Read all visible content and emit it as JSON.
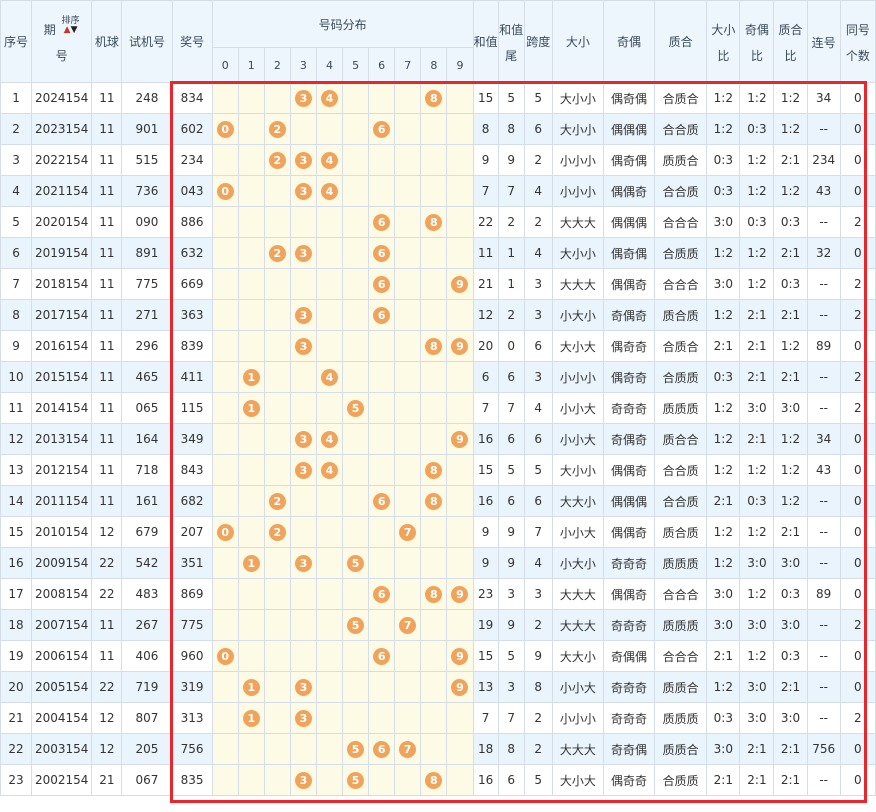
{
  "headers": {
    "seq": "序号",
    "period_top": "期",
    "period_bottom": "号",
    "sort": "排序",
    "machine": "机球",
    "trial": "试机号",
    "prize": "奖号",
    "distribution": "号码分布",
    "digits": [
      "0",
      "1",
      "2",
      "3",
      "4",
      "5",
      "6",
      "7",
      "8",
      "9"
    ],
    "sum": "和值",
    "sum_tail": "和值尾",
    "span": "跨度",
    "size": "大小",
    "parity": "奇偶",
    "prime": "质合",
    "size_ratio": "大小比",
    "parity_ratio": "奇偶比",
    "prime_ratio": "质合比",
    "consecutive": "连号",
    "same_count": "同号个数"
  },
  "rows": [
    {
      "seq": "1",
      "period": "2024154",
      "machine": "11",
      "trial": "248",
      "prize": "834",
      "balls": [
        "3",
        "4",
        "8"
      ],
      "sum": "15",
      "tail": "5",
      "span": "5",
      "size": "大小小",
      "parity": "偶奇偶",
      "prime": "合质合",
      "sr": "1:2",
      "pr": "1:2",
      "qr": "1:2",
      "cons": "34",
      "same": "0"
    },
    {
      "seq": "2",
      "period": "2023154",
      "machine": "11",
      "trial": "901",
      "prize": "602",
      "balls": [
        "0",
        "2",
        "6"
      ],
      "sum": "8",
      "tail": "8",
      "span": "6",
      "size": "大小小",
      "parity": "偶偶偶",
      "prime": "合合质",
      "sr": "1:2",
      "pr": "0:3",
      "qr": "1:2",
      "cons": "--",
      "same": "0"
    },
    {
      "seq": "3",
      "period": "2022154",
      "machine": "11",
      "trial": "515",
      "prize": "234",
      "balls": [
        "2",
        "3",
        "4"
      ],
      "sum": "9",
      "tail": "9",
      "span": "2",
      "size": "小小小",
      "parity": "偶奇偶",
      "prime": "质质合",
      "sr": "0:3",
      "pr": "1:2",
      "qr": "2:1",
      "cons": "234",
      "same": "0"
    },
    {
      "seq": "4",
      "period": "2021154",
      "machine": "11",
      "trial": "736",
      "prize": "043",
      "balls": [
        "0",
        "3",
        "4"
      ],
      "sum": "7",
      "tail": "7",
      "span": "4",
      "size": "小小小",
      "parity": "偶偶奇",
      "prime": "合合质",
      "sr": "0:3",
      "pr": "1:2",
      "qr": "1:2",
      "cons": "43",
      "same": "0"
    },
    {
      "seq": "5",
      "period": "2020154",
      "machine": "11",
      "trial": "090",
      "prize": "886",
      "balls": [
        "6",
        "8"
      ],
      "sum": "22",
      "tail": "2",
      "span": "2",
      "size": "大大大",
      "parity": "偶偶偶",
      "prime": "合合合",
      "sr": "3:0",
      "pr": "0:3",
      "qr": "0:3",
      "cons": "--",
      "same": "2"
    },
    {
      "seq": "6",
      "period": "2019154",
      "machine": "11",
      "trial": "891",
      "prize": "632",
      "balls": [
        "2",
        "3",
        "6"
      ],
      "sum": "11",
      "tail": "1",
      "span": "4",
      "size": "大小小",
      "parity": "偶奇偶",
      "prime": "合质质",
      "sr": "1:2",
      "pr": "1:2",
      "qr": "2:1",
      "cons": "32",
      "same": "0"
    },
    {
      "seq": "7",
      "period": "2018154",
      "machine": "11",
      "trial": "775",
      "prize": "669",
      "balls": [
        "6",
        "9"
      ],
      "sum": "21",
      "tail": "1",
      "span": "3",
      "size": "大大大",
      "parity": "偶偶奇",
      "prime": "合合合",
      "sr": "3:0",
      "pr": "1:2",
      "qr": "0:3",
      "cons": "--",
      "same": "2"
    },
    {
      "seq": "8",
      "period": "2017154",
      "machine": "11",
      "trial": "271",
      "prize": "363",
      "balls": [
        "3",
        "6"
      ],
      "sum": "12",
      "tail": "2",
      "span": "3",
      "size": "小大小",
      "parity": "奇偶奇",
      "prime": "质合质",
      "sr": "1:2",
      "pr": "2:1",
      "qr": "2:1",
      "cons": "--",
      "same": "2"
    },
    {
      "seq": "9",
      "period": "2016154",
      "machine": "11",
      "trial": "296",
      "prize": "839",
      "balls": [
        "3",
        "8",
        "9"
      ],
      "sum": "20",
      "tail": "0",
      "span": "6",
      "size": "大小大",
      "parity": "偶奇奇",
      "prime": "合质合",
      "sr": "2:1",
      "pr": "2:1",
      "qr": "1:2",
      "cons": "89",
      "same": "0"
    },
    {
      "seq": "10",
      "period": "2015154",
      "machine": "11",
      "trial": "465",
      "prize": "411",
      "balls": [
        "1",
        "4"
      ],
      "sum": "6",
      "tail": "6",
      "span": "3",
      "size": "小小小",
      "parity": "偶奇奇",
      "prime": "合质质",
      "sr": "0:3",
      "pr": "2:1",
      "qr": "2:1",
      "cons": "--",
      "same": "2"
    },
    {
      "seq": "11",
      "period": "2014154",
      "machine": "11",
      "trial": "065",
      "prize": "115",
      "balls": [
        "1",
        "5"
      ],
      "sum": "7",
      "tail": "7",
      "span": "4",
      "size": "小小大",
      "parity": "奇奇奇",
      "prime": "质质质",
      "sr": "1:2",
      "pr": "3:0",
      "qr": "3:0",
      "cons": "--",
      "same": "2"
    },
    {
      "seq": "12",
      "period": "2013154",
      "machine": "11",
      "trial": "164",
      "prize": "349",
      "balls": [
        "3",
        "4",
        "9"
      ],
      "sum": "16",
      "tail": "6",
      "span": "6",
      "size": "小小大",
      "parity": "奇偶奇",
      "prime": "质合合",
      "sr": "1:2",
      "pr": "2:1",
      "qr": "1:2",
      "cons": "34",
      "same": "0"
    },
    {
      "seq": "13",
      "period": "2012154",
      "machine": "11",
      "trial": "718",
      "prize": "843",
      "balls": [
        "3",
        "4",
        "8"
      ],
      "sum": "15",
      "tail": "5",
      "span": "5",
      "size": "大小小",
      "parity": "偶偶奇",
      "prime": "合合质",
      "sr": "1:2",
      "pr": "1:2",
      "qr": "1:2",
      "cons": "43",
      "same": "0"
    },
    {
      "seq": "14",
      "period": "2011154",
      "machine": "11",
      "trial": "161",
      "prize": "682",
      "balls": [
        "2",
        "6",
        "8"
      ],
      "sum": "16",
      "tail": "6",
      "span": "6",
      "size": "大大小",
      "parity": "偶偶偶",
      "prime": "合合质",
      "sr": "2:1",
      "pr": "0:3",
      "qr": "1:2",
      "cons": "--",
      "same": "0"
    },
    {
      "seq": "15",
      "period": "2010154",
      "machine": "12",
      "trial": "679",
      "prize": "207",
      "balls": [
        "0",
        "2",
        "7"
      ],
      "sum": "9",
      "tail": "9",
      "span": "7",
      "size": "小小大",
      "parity": "偶偶奇",
      "prime": "质合质",
      "sr": "1:2",
      "pr": "1:2",
      "qr": "2:1",
      "cons": "--",
      "same": "0"
    },
    {
      "seq": "16",
      "period": "2009154",
      "machine": "22",
      "trial": "542",
      "prize": "351",
      "balls": [
        "1",
        "3",
        "5"
      ],
      "sum": "9",
      "tail": "9",
      "span": "4",
      "size": "小大小",
      "parity": "奇奇奇",
      "prime": "质质质",
      "sr": "1:2",
      "pr": "3:0",
      "qr": "3:0",
      "cons": "--",
      "same": "0"
    },
    {
      "seq": "17",
      "period": "2008154",
      "machine": "22",
      "trial": "483",
      "prize": "869",
      "balls": [
        "6",
        "8",
        "9"
      ],
      "sum": "23",
      "tail": "3",
      "span": "3",
      "size": "大大大",
      "parity": "偶偶奇",
      "prime": "合合合",
      "sr": "3:0",
      "pr": "1:2",
      "qr": "0:3",
      "cons": "89",
      "same": "0"
    },
    {
      "seq": "18",
      "period": "2007154",
      "machine": "11",
      "trial": "267",
      "prize": "775",
      "balls": [
        "5",
        "7"
      ],
      "sum": "19",
      "tail": "9",
      "span": "2",
      "size": "大大大",
      "parity": "奇奇奇",
      "prime": "质质质",
      "sr": "3:0",
      "pr": "3:0",
      "qr": "3:0",
      "cons": "--",
      "same": "2"
    },
    {
      "seq": "19",
      "period": "2006154",
      "machine": "11",
      "trial": "406",
      "prize": "960",
      "balls": [
        "0",
        "6",
        "9"
      ],
      "sum": "15",
      "tail": "5",
      "span": "9",
      "size": "大大小",
      "parity": "奇偶偶",
      "prime": "合合合",
      "sr": "2:1",
      "pr": "1:2",
      "qr": "0:3",
      "cons": "--",
      "same": "0"
    },
    {
      "seq": "20",
      "period": "2005154",
      "machine": "22",
      "trial": "719",
      "prize": "319",
      "balls": [
        "1",
        "3",
        "9"
      ],
      "sum": "13",
      "tail": "3",
      "span": "8",
      "size": "小小大",
      "parity": "奇奇奇",
      "prime": "质质合",
      "sr": "1:2",
      "pr": "3:0",
      "qr": "2:1",
      "cons": "--",
      "same": "0"
    },
    {
      "seq": "21",
      "period": "2004154",
      "machine": "12",
      "trial": "807",
      "prize": "313",
      "balls": [
        "1",
        "3"
      ],
      "sum": "7",
      "tail": "7",
      "span": "2",
      "size": "小小小",
      "parity": "奇奇奇",
      "prime": "质质质",
      "sr": "0:3",
      "pr": "3:0",
      "qr": "3:0",
      "cons": "--",
      "same": "2"
    },
    {
      "seq": "22",
      "period": "2003154",
      "machine": "12",
      "trial": "205",
      "prize": "756",
      "balls": [
        "5",
        "6",
        "7"
      ],
      "sum": "18",
      "tail": "8",
      "span": "2",
      "size": "大大大",
      "parity": "奇奇偶",
      "prime": "质质合",
      "sr": "3:0",
      "pr": "2:1",
      "qr": "2:1",
      "cons": "756",
      "same": "0"
    },
    {
      "seq": "23",
      "period": "2002154",
      "machine": "21",
      "trial": "067",
      "prize": "835",
      "balls": [
        "3",
        "5",
        "8"
      ],
      "sum": "16",
      "tail": "6",
      "span": "5",
      "size": "大小大",
      "parity": "偶奇奇",
      "prime": "合质质",
      "sr": "2:1",
      "pr": "2:1",
      "qr": "2:1",
      "cons": "--",
      "same": "0"
    }
  ],
  "colors": {
    "ball": "#f0a35a",
    "header_bg": "#eef6fd",
    "dist_bg": "#fdfbe6",
    "highlight_box": "#e8262b"
  }
}
